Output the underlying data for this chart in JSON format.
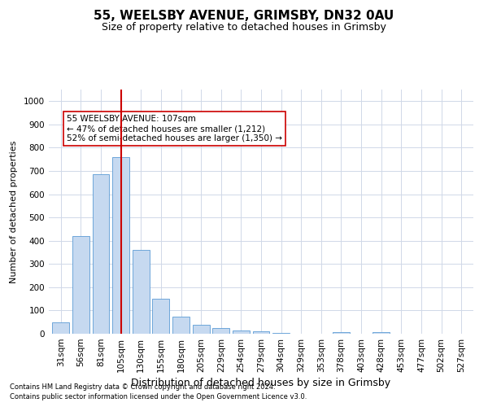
{
  "title1": "55, WEELSBY AVENUE, GRIMSBY, DN32 0AU",
  "title2": "Size of property relative to detached houses in Grimsby",
  "xlabel": "Distribution of detached houses by size in Grimsby",
  "ylabel": "Number of detached properties",
  "categories": [
    "31sqm",
    "56sqm",
    "81sqm",
    "105sqm",
    "130sqm",
    "155sqm",
    "180sqm",
    "205sqm",
    "229sqm",
    "254sqm",
    "279sqm",
    "304sqm",
    "329sqm",
    "353sqm",
    "378sqm",
    "403sqm",
    "428sqm",
    "453sqm",
    "477sqm",
    "502sqm",
    "527sqm"
  ],
  "values": [
    50,
    420,
    685,
    760,
    360,
    150,
    72,
    38,
    25,
    15,
    10,
    5,
    0,
    0,
    8,
    0,
    8,
    0,
    0,
    0,
    0
  ],
  "bar_color": "#c6d9f0",
  "bar_edge_color": "#5b9bd5",
  "vline_x_index": 3,
  "vline_color": "#cc0000",
  "annotation_text": "55 WEELSBY AVENUE: 107sqm\n← 47% of detached houses are smaller (1,212)\n52% of semi-detached houses are larger (1,350) →",
  "annotation_box_color": "#ffffff",
  "annotation_box_edge": "#cc0000",
  "annotation_fontsize": 7.5,
  "footer1": "Contains HM Land Registry data © Crown copyright and database right 2024.",
  "footer2": "Contains public sector information licensed under the Open Government Licence v3.0.",
  "ylim": [
    0,
    1050
  ],
  "yticks": [
    0,
    100,
    200,
    300,
    400,
    500,
    600,
    700,
    800,
    900,
    1000
  ],
  "bg_color": "#ffffff",
  "grid_color": "#d0d8e8",
  "title1_fontsize": 11,
  "title2_fontsize": 9,
  "xlabel_fontsize": 9,
  "ylabel_fontsize": 8,
  "tick_fontsize": 7.5
}
